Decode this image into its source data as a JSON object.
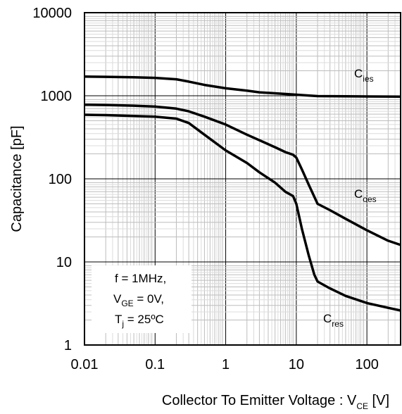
{
  "chart_data": {
    "type": "line",
    "xlabel": {
      "main": "Collector To Emitter Voltage : V",
      "sub": "CE",
      "unit": " [V]"
    },
    "ylabel": "Capacitance [pF]",
    "xscale": "log",
    "yscale": "log",
    "xlim": [
      0.01,
      300
    ],
    "ylim": [
      1,
      10000
    ],
    "grid": true,
    "x_tick_labels": [
      "0.01",
      "0.1",
      "1",
      "10",
      "100"
    ],
    "y_tick_labels": [
      "10000",
      "1000",
      "100",
      "10",
      "1"
    ],
    "series": [
      {
        "name": "C_ies",
        "label_main": "C",
        "label_sub": "ies",
        "points": [
          [
            0.01,
            1700
          ],
          [
            0.02,
            1690
          ],
          [
            0.05,
            1670
          ],
          [
            0.1,
            1640
          ],
          [
            0.2,
            1580
          ],
          [
            0.3,
            1480
          ],
          [
            0.5,
            1350
          ],
          [
            1,
            1230
          ],
          [
            2,
            1150
          ],
          [
            3,
            1100
          ],
          [
            5,
            1070
          ],
          [
            10,
            1030
          ],
          [
            20,
            990
          ],
          [
            50,
            985
          ],
          [
            100,
            980
          ],
          [
            300,
            975
          ]
        ]
      },
      {
        "name": "C_oes",
        "label_main": "C",
        "label_sub": "oes",
        "points": [
          [
            0.01,
            780
          ],
          [
            0.02,
            775
          ],
          [
            0.05,
            760
          ],
          [
            0.1,
            740
          ],
          [
            0.2,
            700
          ],
          [
            0.3,
            650
          ],
          [
            0.5,
            560
          ],
          [
            1,
            450
          ],
          [
            2,
            340
          ],
          [
            5,
            240
          ],
          [
            7,
            210
          ],
          [
            9,
            195
          ],
          [
            10,
            180
          ],
          [
            12,
            130
          ],
          [
            15,
            85
          ],
          [
            20,
            50
          ],
          [
            30,
            42
          ],
          [
            50,
            33
          ],
          [
            100,
            24
          ],
          [
            200,
            18
          ],
          [
            300,
            16
          ]
        ]
      },
      {
        "name": "C_res",
        "label_main": "C",
        "label_sub": "res",
        "points": [
          [
            0.01,
            590
          ],
          [
            0.02,
            585
          ],
          [
            0.05,
            570
          ],
          [
            0.1,
            560
          ],
          [
            0.2,
            530
          ],
          [
            0.3,
            470
          ],
          [
            0.5,
            340
          ],
          [
            1,
            220
          ],
          [
            2,
            155
          ],
          [
            3,
            120
          ],
          [
            5,
            90
          ],
          [
            7,
            70
          ],
          [
            9,
            62
          ],
          [
            10,
            50
          ],
          [
            12,
            25
          ],
          [
            15,
            12
          ],
          [
            18,
            7
          ],
          [
            20,
            5.8
          ],
          [
            30,
            4.8
          ],
          [
            50,
            3.9
          ],
          [
            100,
            3.2
          ],
          [
            200,
            2.8
          ],
          [
            300,
            2.6
          ]
        ]
      }
    ],
    "conditions": [
      {
        "pre": "f = 1MHz,",
        "sub": "",
        "post": ""
      },
      {
        "pre": "V",
        "sub": "GE",
        "post": " = 0V,"
      },
      {
        "pre": "T",
        "sub": "j",
        "post": " = 25ºC"
      }
    ]
  }
}
